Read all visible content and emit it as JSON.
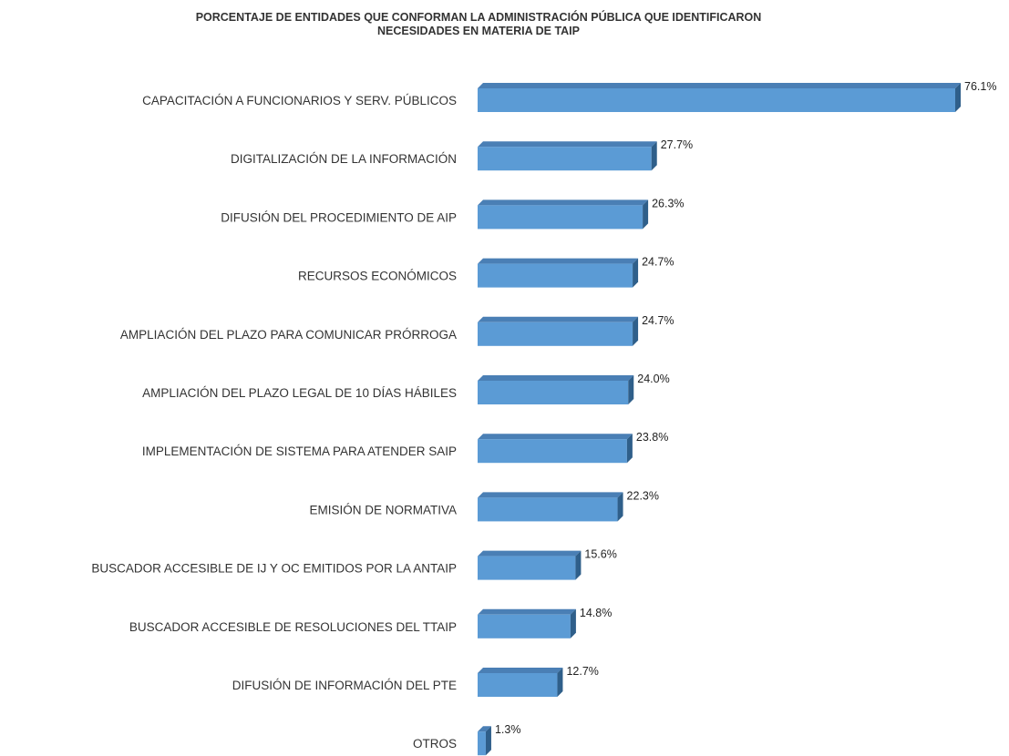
{
  "chart_data": {
    "type": "bar",
    "orientation": "horizontal",
    "title_lines": [
      "PORCENTAJE DE ENTIDADES QUE CONFORMAN LA ADMINISTRACIÓN PÚBLICA QUE IDENTIFICARON",
      "NECESIDADES EN MATERIA DE TAIP"
    ],
    "categories": [
      "CAPACITACIÓN A FUNCIONARIOS Y SERV. PÚBLICOS",
      "DIGITALIZACIÓN DE LA INFORMACIÓN",
      "DIFUSIÓN DEL PROCEDIMIENTO DE AIP",
      "RECURSOS ECONÓMICOS",
      "AMPLIACIÓN DEL PLAZO  PARA COMUNICAR  PRÓRROGA",
      "AMPLIACIÓN DEL PLAZO LEGAL DE 10 DÍAS HÁBILES",
      "IMPLEMENTACIÓN DE SISTEMA PARA ATENDER SAIP",
      "EMISIÓN DE NORMATIVA",
      "BUSCADOR ACCESIBLE DE IJ Y OC EMITIDOS POR LA ANTAIP",
      "BUSCADOR ACCESIBLE DE RESOLUCIONES DEL TTAIP",
      "DIFUSIÓN DE INFORMACIÓN DEL PTE",
      "OTROS"
    ],
    "values": [
      76.1,
      27.7,
      26.3,
      24.7,
      24.7,
      24.0,
      23.8,
      22.3,
      15.6,
      14.8,
      12.7,
      1.3
    ],
    "value_labels": [
      "76.1%",
      "27.7%",
      "26.3%",
      "24.7%",
      "24.7%",
      "24.0%",
      "23.8%",
      "22.3%",
      "15.6%",
      "14.8%",
      "12.7%",
      "1.3%"
    ],
    "unit": "%",
    "xlim": [
      0,
      76.1
    ],
    "grid": false,
    "legend": "none",
    "style": "3d",
    "colors": {
      "bar_front": "#5B9BD5",
      "bar_top": "#4A7FB5",
      "bar_side": "#2F5F8A"
    }
  }
}
